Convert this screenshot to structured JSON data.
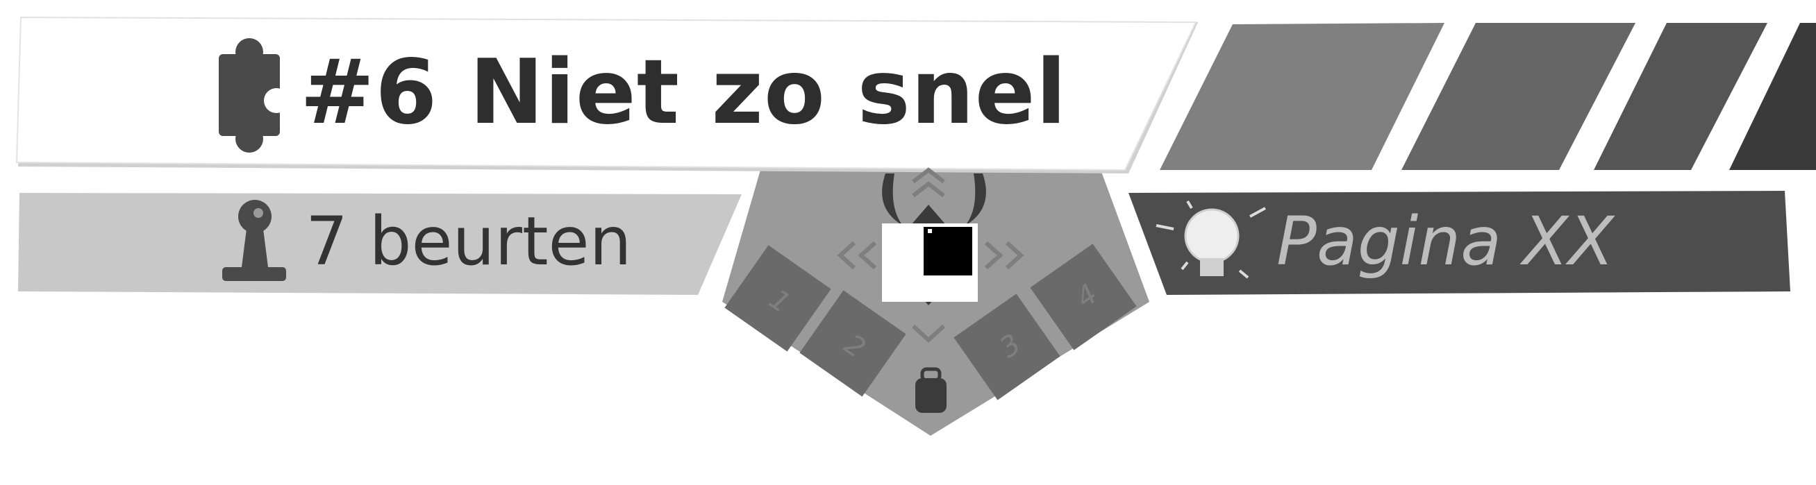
{
  "level": {
    "title": "#6 Niet zo snel",
    "title_icon": "puzzle-piece-icon"
  },
  "turns": {
    "label": "7 beurten",
    "icon": "pawn-icon"
  },
  "hint": {
    "label": "Pagina XX",
    "icon": "lightbulb-icon"
  },
  "controller": {
    "slots": [
      "1",
      "2",
      "3",
      "4"
    ],
    "icons": [
      "monster-horns-icon",
      "dpad-icon",
      "backpack-icon"
    ]
  },
  "progress_tabs": {
    "count": 4,
    "colors": [
      "#808080",
      "#666666",
      "#555555",
      "#3a3a3a"
    ]
  },
  "colors": {
    "title_bg": "#ffffff",
    "turns_bg": "#c8c8c8",
    "hint_bg": "#4d4d4d",
    "controller_bg": "#9a9a9a"
  }
}
